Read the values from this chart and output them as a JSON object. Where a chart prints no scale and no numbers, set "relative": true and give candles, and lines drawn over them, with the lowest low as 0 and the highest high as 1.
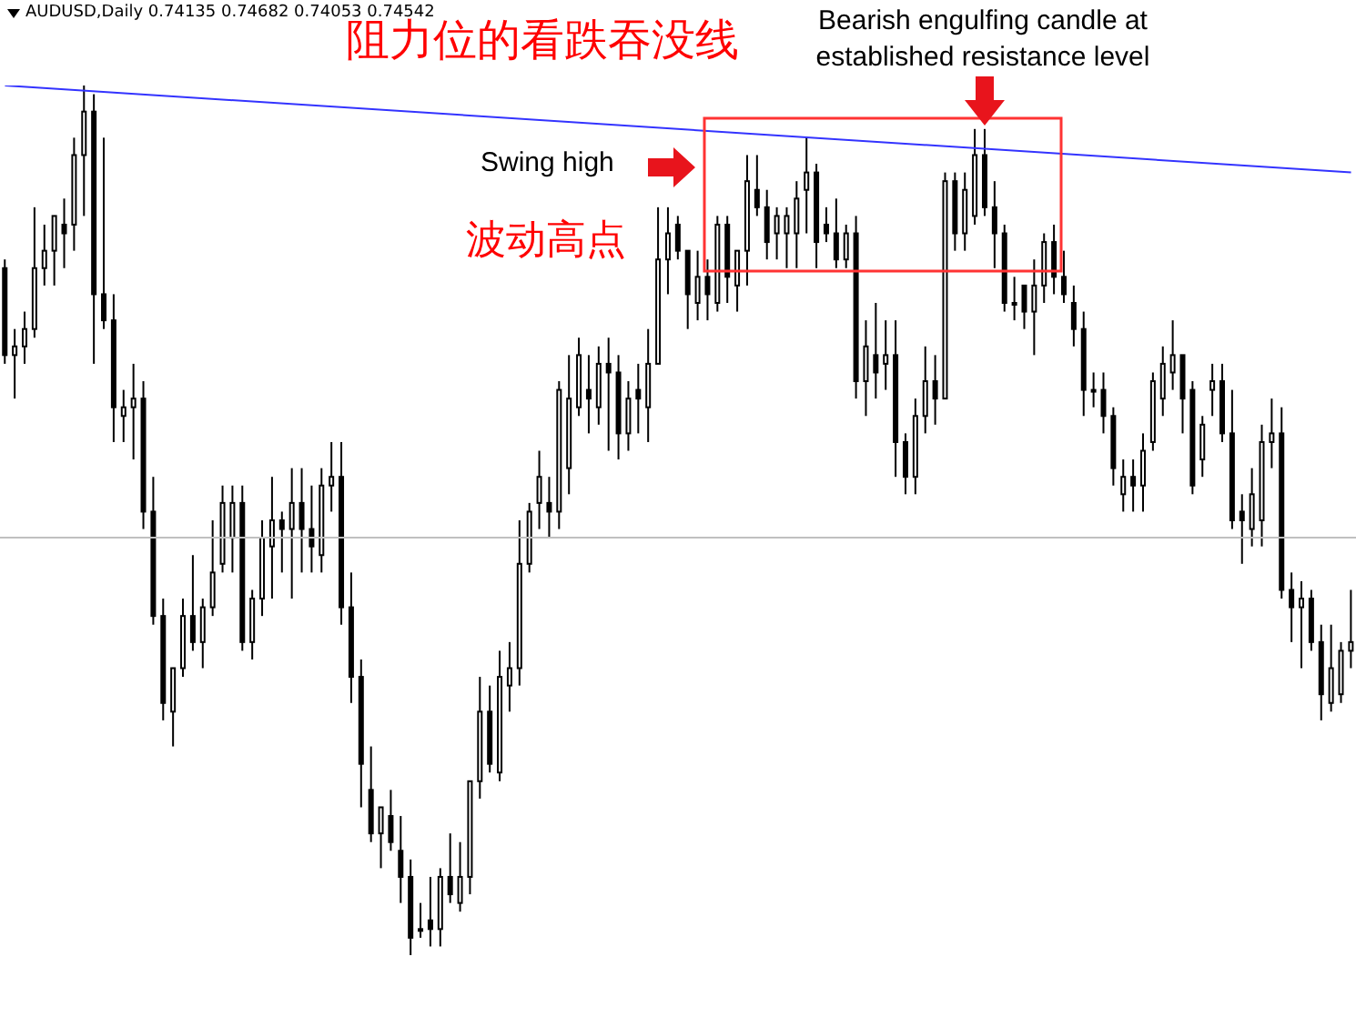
{
  "chart_data": {
    "type": "candlestick",
    "relative": true,
    "title": "阻力位的看跌吞没线",
    "annotations": [
      "AUDUSD,Daily  0.74135 0.74682 0.74053 0.74542",
      "Swing high",
      "波动高点",
      "Bearish engulfing candle at established resistance level"
    ],
    "categories": [
      null,
      null,
      null,
      null,
      null,
      null,
      null,
      null,
      null,
      null,
      null,
      null,
      null,
      null,
      null,
      null,
      null,
      null,
      null,
      null,
      null,
      null,
      null,
      null,
      null,
      null,
      null,
      null,
      null,
      null,
      null,
      null,
      null,
      null,
      null,
      null,
      null,
      null,
      null,
      null,
      null,
      null,
      null,
      null,
      null,
      null,
      null,
      null,
      null,
      null,
      null,
      null,
      null,
      null,
      null,
      null,
      null,
      null,
      null,
      null,
      null,
      null,
      null,
      null,
      null,
      null,
      null,
      null,
      null,
      null,
      null,
      null,
      null,
      null,
      null,
      null,
      null,
      null,
      null,
      null,
      null,
      null,
      null,
      null,
      null,
      null,
      null,
      null,
      null,
      null,
      null,
      null,
      null,
      null,
      null,
      null,
      null,
      null,
      null,
      null,
      null,
      null,
      null,
      null,
      null,
      null,
      null,
      null,
      null,
      null,
      null,
      null,
      null,
      null,
      null,
      null,
      null,
      null,
      null,
      null,
      null,
      null,
      null,
      null,
      null,
      null,
      null,
      null,
      null,
      null,
      null,
      null,
      null,
      null,
      null,
      null,
      null
    ],
    "ref_lines": [
      {
        "axis": "y",
        "value": 0.48,
        "color": "#c0c0c0"
      }
    ],
    "series": [
      {
        "color": "#000000",
        "ohlc": [
          [
            0.79,
            0.8,
            0.68,
            0.69
          ],
          [
            0.69,
            0.72,
            0.64,
            0.7
          ],
          [
            0.7,
            0.74,
            0.68,
            0.72
          ],
          [
            0.72,
            0.86,
            0.71,
            0.79
          ],
          [
            0.79,
            0.84,
            0.77,
            0.81
          ],
          [
            0.81,
            0.85,
            0.77,
            0.85
          ],
          [
            0.84,
            0.87,
            0.79,
            0.83
          ],
          [
            0.84,
            0.94,
            0.81,
            0.92
          ],
          [
            0.92,
            1,
            0.85,
            0.97
          ],
          [
            0.97,
            0.99,
            0.68,
            0.76
          ],
          [
            0.76,
            0.94,
            0.72,
            0.73
          ],
          [
            0.73,
            0.76,
            0.59,
            0.63
          ],
          [
            0.62,
            0.65,
            0.59,
            0.63
          ],
          [
            0.63,
            0.68,
            0.57,
            0.64
          ],
          [
            0.64,
            0.66,
            0.49,
            0.51
          ],
          [
            0.51,
            0.55,
            0.38,
            0.39
          ],
          [
            0.39,
            0.41,
            0.27,
            0.29
          ],
          [
            0.28,
            0.33,
            0.24,
            0.33
          ],
          [
            0.33,
            0.41,
            0.32,
            0.39
          ],
          [
            0.39,
            0.46,
            0.35,
            0.36
          ],
          [
            0.36,
            0.41,
            0.33,
            0.4
          ],
          [
            0.4,
            0.5,
            0.39,
            0.44
          ],
          [
            0.45,
            0.54,
            0.44,
            0.52
          ],
          [
            0.48,
            0.54,
            0.44,
            0.52
          ],
          [
            0.52,
            0.54,
            0.35,
            0.36
          ],
          [
            0.36,
            0.42,
            0.34,
            0.41
          ],
          [
            0.41,
            0.5,
            0.39,
            0.48
          ],
          [
            0.47,
            0.55,
            0.41,
            0.5
          ],
          [
            0.5,
            0.51,
            0.44,
            0.49
          ],
          [
            0.49,
            0.56,
            0.41,
            0.52
          ],
          [
            0.52,
            0.56,
            0.44,
            0.49
          ],
          [
            0.49,
            0.54,
            0.44,
            0.47
          ],
          [
            0.46,
            0.56,
            0.44,
            0.54
          ],
          [
            0.54,
            0.59,
            0.51,
            0.55
          ],
          [
            0.55,
            0.59,
            0.38,
            0.4
          ],
          [
            0.4,
            0.44,
            0.29,
            0.32
          ],
          [
            0.32,
            0.34,
            0.17,
            0.22
          ],
          [
            0.19,
            0.24,
            0.13,
            0.14
          ],
          [
            0.14,
            0.17,
            0.1,
            0.17
          ],
          [
            0.16,
            0.19,
            0.12,
            0.13
          ],
          [
            0.12,
            0.16,
            0.06,
            0.09
          ],
          [
            0.09,
            0.11,
            0,
            0.02
          ],
          [
            0.03,
            0.06,
            0.02,
            0.03
          ],
          [
            0.04,
            0.09,
            0.01,
            0.03
          ],
          [
            0.03,
            0.1,
            0.01,
            0.09
          ],
          [
            0.09,
            0.14,
            0.06,
            0.07
          ],
          [
            0.06,
            0.13,
            0.05,
            0.09
          ],
          [
            0.09,
            0.2,
            0.07,
            0.2
          ],
          [
            0.2,
            0.32,
            0.18,
            0.28
          ],
          [
            0.28,
            0.31,
            0.21,
            0.22
          ],
          [
            0.21,
            0.35,
            0.2,
            0.32
          ],
          [
            0.31,
            0.36,
            0.28,
            0.33
          ],
          [
            0.33,
            0.5,
            0.31,
            0.45
          ],
          [
            0.45,
            0.52,
            0.44,
            0.51
          ],
          [
            0.52,
            0.58,
            0.49,
            0.55
          ],
          [
            0.52,
            0.55,
            0.48,
            0.51
          ],
          [
            0.51,
            0.66,
            0.49,
            0.65
          ],
          [
            0.56,
            0.69,
            0.53,
            0.64
          ],
          [
            0.63,
            0.71,
            0.62,
            0.69
          ],
          [
            0.65,
            0.69,
            0.6,
            0.64
          ],
          [
            0.63,
            0.7,
            0.61,
            0.68
          ],
          [
            0.68,
            0.71,
            0.58,
            0.67
          ],
          [
            0.67,
            0.69,
            0.57,
            0.6
          ],
          [
            0.6,
            0.66,
            0.58,
            0.64
          ],
          [
            0.65,
            0.68,
            0.6,
            0.64
          ],
          [
            0.63,
            0.72,
            0.59,
            0.68
          ],
          [
            0.68,
            0.86,
            0.68,
            0.8
          ],
          [
            0.8,
            0.86,
            0.76,
            0.83
          ],
          [
            0.84,
            0.85,
            0.8,
            0.81
          ],
          [
            0.81,
            0.81,
            0.72,
            0.76
          ],
          [
            0.75,
            0.81,
            0.73,
            0.78
          ],
          [
            0.78,
            0.8,
            0.73,
            0.76
          ],
          [
            0.75,
            0.85,
            0.74,
            0.84
          ],
          [
            0.84,
            0.85,
            0.75,
            0.78
          ],
          [
            0.77,
            0.81,
            0.74,
            0.81
          ],
          [
            0.81,
            0.92,
            0.77,
            0.89
          ],
          [
            0.88,
            0.92,
            0.85,
            0.86
          ],
          [
            0.86,
            0.88,
            0.8,
            0.82
          ],
          [
            0.83,
            0.86,
            0.8,
            0.85
          ],
          [
            0.83,
            0.86,
            0.79,
            0.85
          ],
          [
            0.83,
            0.89,
            0.79,
            0.87
          ],
          [
            0.88,
            0.94,
            0.83,
            0.9
          ],
          [
            0.9,
            0.91,
            0.79,
            0.82
          ],
          [
            0.84,
            0.86,
            0.82,
            0.83
          ],
          [
            0.83,
            0.87,
            0.79,
            0.8
          ],
          [
            0.8,
            0.84,
            0.79,
            0.83
          ],
          [
            0.83,
            0.85,
            0.64,
            0.66
          ],
          [
            0.66,
            0.73,
            0.62,
            0.7
          ],
          [
            0.69,
            0.75,
            0.64,
            0.67
          ],
          [
            0.68,
            0.73,
            0.65,
            0.69
          ],
          [
            0.69,
            0.73,
            0.55,
            0.59
          ],
          [
            0.59,
            0.6,
            0.53,
            0.55
          ],
          [
            0.55,
            0.64,
            0.53,
            0.62
          ],
          [
            0.62,
            0.7,
            0.6,
            0.66
          ],
          [
            0.66,
            0.69,
            0.61,
            0.64
          ],
          [
            0.64,
            0.9,
            0.64,
            0.89
          ],
          [
            0.89,
            0.9,
            0.81,
            0.83
          ],
          [
            0.83,
            0.9,
            0.81,
            0.88
          ],
          [
            0.85,
            0.95,
            0.84,
            0.92
          ],
          [
            0.92,
            0.95,
            0.85,
            0.86
          ],
          [
            0.86,
            0.89,
            0.79,
            0.83
          ],
          [
            0.83,
            0.84,
            0.74,
            0.75
          ],
          [
            0.75,
            0.78,
            0.73,
            0.75
          ],
          [
            0.77,
            0.77,
            0.72,
            0.74
          ],
          [
            0.74,
            0.8,
            0.69,
            0.77
          ],
          [
            0.77,
            0.83,
            0.75,
            0.82
          ],
          [
            0.82,
            0.84,
            0.76,
            0.78
          ],
          [
            0.78,
            0.81,
            0.75,
            0.76
          ],
          [
            0.75,
            0.77,
            0.7,
            0.72
          ],
          [
            0.72,
            0.74,
            0.62,
            0.65
          ],
          [
            0.65,
            0.67,
            0.63,
            0.65
          ],
          [
            0.65,
            0.67,
            0.6,
            0.62
          ],
          [
            0.62,
            0.63,
            0.54,
            0.56
          ],
          [
            0.53,
            0.57,
            0.51,
            0.55
          ],
          [
            0.55,
            0.57,
            0.51,
            0.54
          ],
          [
            0.54,
            0.6,
            0.51,
            0.58
          ],
          [
            0.59,
            0.67,
            0.58,
            0.66
          ],
          [
            0.64,
            0.7,
            0.62,
            0.68
          ],
          [
            0.67,
            0.73,
            0.65,
            0.69
          ],
          [
            0.69,
            0.69,
            0.6,
            0.64
          ],
          [
            0.65,
            0.66,
            0.53,
            0.54
          ],
          [
            0.57,
            0.62,
            0.55,
            0.61
          ],
          [
            0.65,
            0.68,
            0.62,
            0.66
          ],
          [
            0.66,
            0.68,
            0.59,
            0.6
          ],
          [
            0.6,
            0.65,
            0.49,
            0.5
          ],
          [
            0.51,
            0.53,
            0.45,
            0.5
          ],
          [
            0.49,
            0.56,
            0.47,
            0.53
          ],
          [
            0.5,
            0.61,
            0.47,
            0.59
          ],
          [
            0.59,
            0.64,
            0.56,
            0.6
          ],
          [
            0.6,
            0.63,
            0.41,
            0.42
          ],
          [
            0.42,
            0.44,
            0.36,
            0.4
          ],
          [
            0.4,
            0.43,
            0.33,
            0.41
          ],
          [
            0.41,
            0.42,
            0.35,
            0.36
          ],
          [
            0.36,
            0.38,
            0.27,
            0.3
          ],
          [
            0.29,
            0.38,
            0.28,
            0.33
          ],
          [
            0.3,
            0.36,
            0.29,
            0.35
          ],
          [
            0.35,
            0.42,
            0.33,
            0.36
          ]
        ]
      },
      {
        "type": "line",
        "color": "#3333ff",
        "values": [
          1.0,
          null,
          null,
          null,
          null,
          null,
          null,
          null,
          null,
          null,
          null,
          null,
          null,
          null,
          null,
          null,
          null,
          null,
          null,
          null,
          null,
          null,
          null,
          null,
          null,
          null,
          null,
          null,
          null,
          null,
          null,
          null,
          null,
          null,
          null,
          null,
          null,
          null,
          null,
          null,
          null,
          null,
          null,
          null,
          null,
          null,
          null,
          null,
          null,
          null,
          null,
          null,
          null,
          null,
          null,
          null,
          null,
          null,
          null,
          null,
          null,
          null,
          null,
          null,
          null,
          null,
          null,
          null,
          null,
          null,
          null,
          null,
          null,
          null,
          null,
          null,
          null,
          null,
          null,
          null,
          null,
          null,
          null,
          null,
          null,
          null,
          null,
          null,
          null,
          null,
          null,
          null,
          null,
          null,
          null,
          null,
          null,
          null,
          null,
          null,
          null,
          null,
          null,
          null,
          null,
          null,
          null,
          null,
          null,
          null,
          null,
          null,
          null,
          null,
          null,
          null,
          null,
          null,
          null,
          null,
          null,
          null,
          null,
          null,
          null,
          null,
          null,
          null,
          null,
          null,
          null,
          null,
          null,
          null,
          null,
          null,
          0.9
        ]
      }
    ]
  }
}
